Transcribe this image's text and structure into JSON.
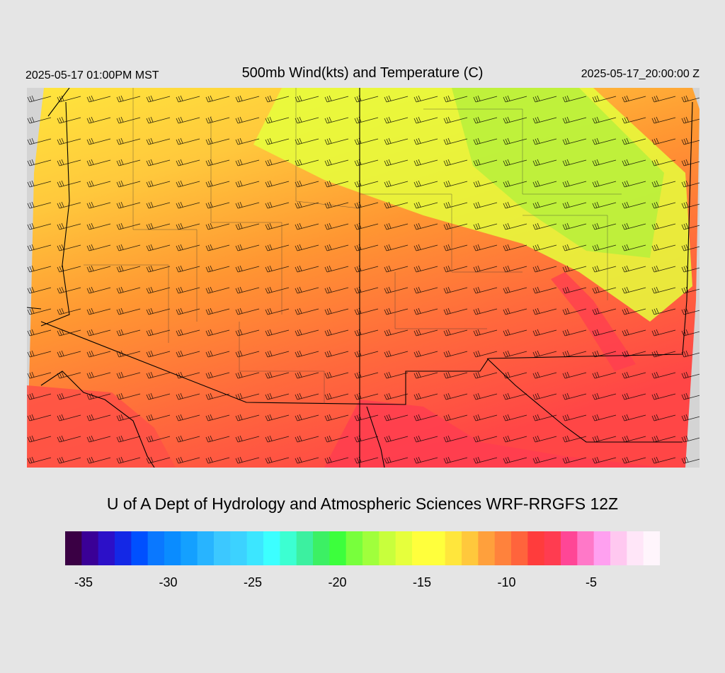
{
  "header": {
    "valid_local": "2025-05-17 01:00PM MST",
    "title": "500mb Wind(kts) and Temperature (C)",
    "valid_utc": "2025-05-17_20:00:00 Z"
  },
  "map": {
    "field": "500mb temperature with wind barbs",
    "background_nodata": "#d4d4d4",
    "palette_dominant": [
      "#ff5a3c",
      "#ff8c32",
      "#ffc832",
      "#ffff3c",
      "#c8ff3c",
      "#ff3c50"
    ]
  },
  "credit": "U of A Dept of Hydrology and Atmospheric Sciences WRF-RRGFS 12Z",
  "colorbar": {
    "colors": [
      "#3a0044",
      "#3a0096",
      "#2c10c8",
      "#1428e6",
      "#0050ff",
      "#0a78ff",
      "#0a8cff",
      "#14a0ff",
      "#28b4ff",
      "#3cc8ff",
      "#3cd2ff",
      "#3ce6ff",
      "#3cffff",
      "#3cffd2",
      "#3cf0a0",
      "#3cf064",
      "#3cff3c",
      "#78ff3c",
      "#a0ff3c",
      "#c8ff3c",
      "#e6ff3c",
      "#ffff3c",
      "#ffff3c",
      "#ffe63c",
      "#ffc83c",
      "#ffa03c",
      "#ff823c",
      "#ff643c",
      "#ff3c3c",
      "#ff3c50",
      "#ff4696",
      "#ff78c8",
      "#ffa0f0",
      "#ffc8f0",
      "#ffe6f8",
      "#fff5fc"
    ],
    "ticks": [
      {
        "label": "-35",
        "value": -35
      },
      {
        "label": "-30",
        "value": -30
      },
      {
        "label": "-25",
        "value": -25
      },
      {
        "label": "-20",
        "value": -20
      },
      {
        "label": "-15",
        "value": -15
      },
      {
        "label": "-10",
        "value": -10
      },
      {
        "label": "-5",
        "value": -5
      }
    ]
  }
}
